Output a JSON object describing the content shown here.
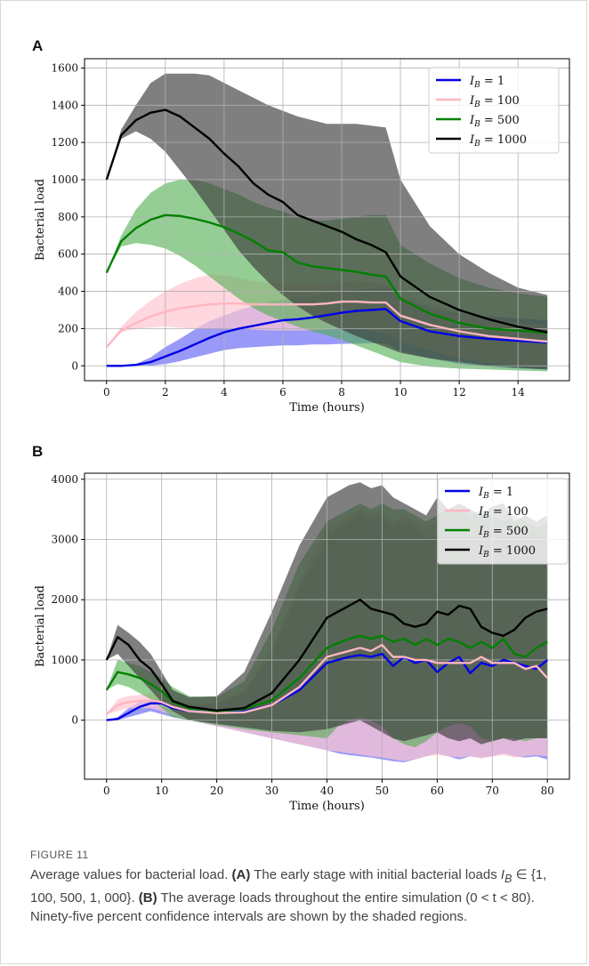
{
  "panels": {
    "a": {
      "letter": "A"
    },
    "b": {
      "letter": "B"
    }
  },
  "figure": {
    "label": "FIGURE 11",
    "caption_parts": {
      "p1": "Average values for bacterial load. ",
      "tagA": "(A)",
      "p2": " The early stage with initial bacterial loads ",
      "math": "I",
      "sub": "B",
      "p3": " ∈ {1, 100, 500, 1, 000}. ",
      "tagB": "(B)",
      "p4": " The average loads throughout the entire simulation (0 < t < 80). Ninety-five percent confidence intervals are shown by the shaded regions."
    }
  },
  "chart_data": [
    {
      "type": "line",
      "panel": "A",
      "xlabel": "Time (hours)",
      "ylabel": "Bacterial load",
      "xlim": [
        -0.75,
        15.75
      ],
      "ylim": [
        -80,
        1650
      ],
      "xticks": [
        0,
        2,
        4,
        6,
        8,
        10,
        12,
        14
      ],
      "yticks": [
        0,
        200,
        400,
        600,
        800,
        1000,
        1200,
        1400,
        1600
      ],
      "grid": true,
      "legend_position": "top-right",
      "series": [
        {
          "name": "I_B = 1",
          "legend_label": "1",
          "color": "#0000e6",
          "x": [
            0,
            0.5,
            1,
            1.5,
            2,
            2.5,
            3,
            3.5,
            4,
            4.5,
            5,
            5.5,
            6,
            6.5,
            7,
            7.5,
            8,
            8.5,
            9,
            9.5,
            10,
            11,
            12,
            13,
            14,
            15
          ],
          "values": [
            0,
            0,
            5,
            20,
            50,
            80,
            115,
            150,
            180,
            200,
            215,
            230,
            245,
            250,
            260,
            272,
            285,
            295,
            300,
            305,
            240,
            185,
            160,
            145,
            135,
            125
          ],
          "lower": [
            0,
            0,
            0,
            0,
            10,
            25,
            45,
            65,
            85,
            95,
            100,
            105,
            110,
            110,
            115,
            115,
            118,
            120,
            122,
            120,
            80,
            40,
            10,
            -5,
            -15,
            -20
          ],
          "upper": [
            0,
            0,
            10,
            45,
            100,
            145,
            195,
            240,
            270,
            300,
            320,
            340,
            355,
            365,
            375,
            390,
            400,
            410,
            415,
            430,
            360,
            310,
            280,
            265,
            255,
            245
          ]
        },
        {
          "name": "I_B = 100",
          "legend_label": "100",
          "color": "#ffb6c1",
          "x": [
            0,
            0.5,
            1,
            1.5,
            2,
            2.5,
            3,
            3.5,
            4,
            4.5,
            5,
            5.5,
            6,
            6.5,
            7,
            7.5,
            8,
            8.5,
            9,
            9.5,
            10,
            11,
            12,
            13,
            14,
            15
          ],
          "values": [
            100,
            190,
            230,
            265,
            290,
            310,
            320,
            330,
            335,
            335,
            330,
            330,
            330,
            330,
            330,
            335,
            345,
            345,
            340,
            340,
            270,
            220,
            185,
            160,
            145,
            130
          ],
          "lower": [
            100,
            180,
            200,
            205,
            210,
            205,
            200,
            200,
            200,
            200,
            195,
            190,
            190,
            190,
            190,
            195,
            200,
            195,
            190,
            170,
            130,
            80,
            40,
            15,
            0,
            -10
          ],
          "upper": [
            100,
            210,
            290,
            350,
            400,
            440,
            470,
            490,
            485,
            470,
            455,
            445,
            440,
            440,
            440,
            445,
            450,
            455,
            450,
            440,
            380,
            320,
            285,
            255,
            230,
            220
          ]
        },
        {
          "name": "I_B = 500",
          "legend_label": "500",
          "color": "#008000",
          "x": [
            0,
            0.5,
            1,
            1.5,
            2,
            2.5,
            3,
            3.5,
            4,
            4.5,
            5,
            5.5,
            6,
            6.5,
            7,
            7.5,
            8,
            8.5,
            9,
            9.5,
            10,
            11,
            12,
            13,
            14,
            15
          ],
          "values": [
            500,
            670,
            740,
            785,
            810,
            805,
            790,
            770,
            745,
            710,
            670,
            620,
            610,
            555,
            535,
            525,
            515,
            505,
            490,
            480,
            360,
            280,
            230,
            200,
            190,
            175
          ],
          "lower": [
            500,
            640,
            660,
            650,
            630,
            590,
            540,
            480,
            420,
            360,
            310,
            270,
            240,
            210,
            185,
            165,
            140,
            110,
            80,
            50,
            20,
            -5,
            -15,
            -20,
            -25,
            -30
          ],
          "upper": [
            500,
            700,
            840,
            930,
            980,
            1000,
            1000,
            980,
            950,
            920,
            880,
            850,
            830,
            800,
            780,
            780,
            790,
            800,
            810,
            810,
            650,
            550,
            470,
            420,
            390,
            370
          ]
        },
        {
          "name": "I_B = 1000",
          "legend_label": "1000",
          "color": "#000000",
          "x": [
            0,
            0.5,
            1,
            1.5,
            2,
            2.5,
            3,
            3.5,
            4,
            4.5,
            5,
            5.5,
            6,
            6.5,
            7,
            7.5,
            8,
            8.5,
            9,
            9.5,
            10,
            11,
            12,
            13,
            14,
            15
          ],
          "values": [
            1000,
            1240,
            1320,
            1360,
            1375,
            1340,
            1280,
            1220,
            1140,
            1070,
            980,
            920,
            880,
            810,
            780,
            750,
            720,
            680,
            650,
            610,
            480,
            370,
            300,
            250,
            210,
            180
          ],
          "lower": [
            1000,
            1220,
            1260,
            1220,
            1150,
            1050,
            950,
            840,
            730,
            620,
            530,
            450,
            380,
            320,
            270,
            230,
            195,
            160,
            130,
            100,
            70,
            40,
            20,
            0,
            -10,
            -20
          ],
          "upper": [
            1000,
            1270,
            1400,
            1520,
            1570,
            1570,
            1570,
            1560,
            1520,
            1480,
            1440,
            1400,
            1370,
            1340,
            1320,
            1300,
            1300,
            1300,
            1290,
            1280,
            1000,
            750,
            600,
            500,
            420,
            380
          ]
        }
      ]
    },
    {
      "type": "line",
      "panel": "B",
      "xlabel": "Time (hours)",
      "ylabel": "Bacterial load",
      "xlim": [
        -4,
        84
      ],
      "ylim": [
        -980,
        4100
      ],
      "xticks": [
        0,
        10,
        20,
        30,
        40,
        50,
        60,
        70,
        80
      ],
      "yticks": [
        0,
        1000,
        2000,
        3000,
        4000
      ],
      "grid": true,
      "legend_position": "top-right",
      "series": [
        {
          "name": "I_B = 1",
          "legend_label": "1",
          "color": "#0000e6",
          "x": [
            0,
            2,
            4,
            6,
            8,
            10,
            12,
            15,
            20,
            25,
            30,
            35,
            40,
            42,
            44,
            46,
            48,
            50,
            52,
            54,
            56,
            58,
            60,
            62,
            64,
            66,
            68,
            70,
            72,
            74,
            76,
            78,
            80
          ],
          "values": [
            0,
            20,
            120,
            220,
            280,
            280,
            200,
            150,
            130,
            150,
            250,
            500,
            950,
            1000,
            1050,
            1080,
            1050,
            1100,
            900,
            1050,
            950,
            1000,
            800,
            950,
            1050,
            780,
            950,
            900,
            1000,
            950,
            900,
            850,
            1000
          ],
          "lower": [
            0,
            0,
            50,
            100,
            150,
            100,
            50,
            0,
            -100,
            -200,
            -300,
            -400,
            -500,
            -550,
            -580,
            -600,
            -620,
            -650,
            -680,
            -700,
            -650,
            -600,
            -550,
            -600,
            -650,
            -600,
            -620,
            -600,
            -550,
            -600,
            -620,
            -600,
            -650
          ],
          "upper": [
            0,
            50,
            200,
            300,
            350,
            350,
            300,
            250,
            260,
            450,
            1100,
            2200,
            3000,
            3200,
            3300,
            3400,
            3300,
            3400,
            3200,
            3300,
            3200,
            3000,
            3100,
            3300,
            3200,
            3000,
            3300,
            3200,
            3100,
            3000,
            3200,
            3100,
            3000
          ]
        },
        {
          "name": "I_B = 100",
          "legend_label": "100",
          "color": "#ffb6c1",
          "x": [
            0,
            2,
            4,
            6,
            8,
            10,
            12,
            15,
            20,
            25,
            30,
            35,
            40,
            42,
            44,
            46,
            48,
            50,
            52,
            54,
            56,
            58,
            60,
            62,
            64,
            66,
            68,
            70,
            72,
            74,
            76,
            78,
            80
          ],
          "values": [
            100,
            250,
            300,
            320,
            330,
            300,
            220,
            150,
            120,
            130,
            250,
            550,
            1050,
            1100,
            1150,
            1200,
            1150,
            1250,
            1050,
            1050,
            1000,
            1000,
            950,
            950,
            950,
            950,
            1050,
            950,
            950,
            950,
            850,
            900,
            700
          ],
          "lower": [
            100,
            150,
            200,
            200,
            200,
            150,
            80,
            0,
            -100,
            -200,
            -300,
            -400,
            -500,
            -520,
            -550,
            -570,
            -600,
            -620,
            -650,
            -680,
            -650,
            -600,
            -580,
            -600,
            -620,
            -600,
            -640,
            -600,
            -580,
            -620,
            -600,
            -580,
            -600
          ],
          "upper": [
            100,
            350,
            400,
            420,
            440,
            420,
            350,
            280,
            280,
            500,
            1200,
            2300,
            3200,
            3300,
            3400,
            3500,
            3400,
            3500,
            3300,
            3400,
            3300,
            3200,
            3300,
            3400,
            3300,
            3200,
            3400,
            3300,
            3200,
            3300,
            3200,
            3100,
            3200
          ]
        },
        {
          "name": "I_B = 500",
          "legend_label": "500",
          "color": "#008000",
          "x": [
            0,
            2,
            4,
            6,
            8,
            10,
            12,
            15,
            20,
            25,
            30,
            35,
            40,
            42,
            44,
            46,
            48,
            50,
            52,
            54,
            56,
            58,
            60,
            62,
            64,
            66,
            68,
            70,
            72,
            74,
            76,
            78,
            80
          ],
          "values": [
            500,
            800,
            760,
            700,
            600,
            480,
            300,
            200,
            150,
            180,
            330,
            700,
            1200,
            1280,
            1350,
            1400,
            1350,
            1400,
            1300,
            1350,
            1250,
            1350,
            1250,
            1350,
            1300,
            1200,
            1300,
            1200,
            1350,
            1100,
            1050,
            1200,
            1300
          ],
          "lower": [
            500,
            600,
            550,
            450,
            350,
            200,
            50,
            0,
            -80,
            -150,
            -200,
            -250,
            -300,
            -100,
            0,
            50,
            0,
            -100,
            -300,
            -400,
            -450,
            -350,
            -200,
            -100,
            -50,
            -100,
            -300,
            -350,
            -300,
            -300,
            -350,
            -300,
            -300
          ],
          "upper": [
            500,
            1000,
            950,
            900,
            800,
            700,
            550,
            400,
            380,
            650,
            1500,
            2600,
            3300,
            3400,
            3500,
            3600,
            3500,
            3600,
            3500,
            3500,
            3400,
            3300,
            3400,
            3500,
            3500,
            3400,
            3500,
            3400,
            3300,
            3400,
            3300,
            3200,
            3300
          ]
        },
        {
          "name": "I_B = 1000",
          "legend_label": "1000",
          "color": "#000000",
          "x": [
            0,
            2,
            4,
            6,
            8,
            10,
            12,
            15,
            20,
            25,
            30,
            35,
            40,
            42,
            44,
            46,
            48,
            50,
            52,
            54,
            56,
            58,
            60,
            62,
            64,
            66,
            68,
            70,
            72,
            74,
            76,
            78,
            80
          ],
          "values": [
            1000,
            1380,
            1250,
            1000,
            850,
            600,
            320,
            220,
            160,
            200,
            450,
            1000,
            1700,
            1800,
            1900,
            2000,
            1850,
            1800,
            1750,
            1600,
            1550,
            1600,
            1800,
            1750,
            1900,
            1850,
            1550,
            1450,
            1400,
            1500,
            1700,
            1800,
            1850
          ],
          "lower": [
            1000,
            1100,
            900,
            700,
            500,
            300,
            150,
            0,
            -60,
            -120,
            -180,
            -200,
            -150,
            -100,
            -50,
            0,
            -100,
            -200,
            -300,
            -350,
            -300,
            -250,
            -200,
            -300,
            -350,
            -300,
            -400,
            -350,
            -300,
            -350,
            -300,
            -300,
            -300
          ],
          "upper": [
            1000,
            1580,
            1450,
            1300,
            1100,
            800,
            500,
            380,
            400,
            800,
            1800,
            2900,
            3700,
            3800,
            3900,
            3950,
            3850,
            3900,
            3700,
            3600,
            3500,
            3400,
            3700,
            3500,
            3600,
            3500,
            3400,
            3550,
            3600,
            3300,
            3400,
            3300,
            3400
          ]
        }
      ]
    }
  ]
}
